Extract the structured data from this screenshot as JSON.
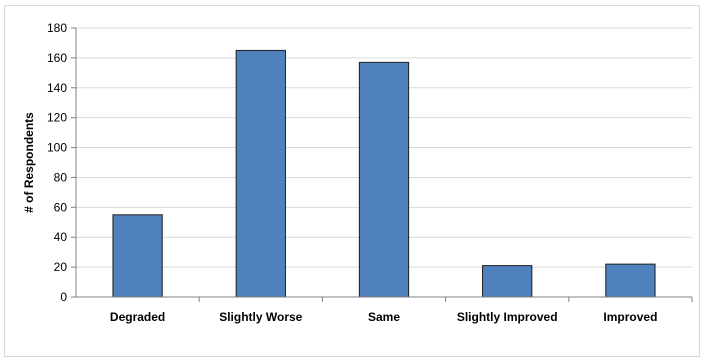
{
  "chart_data": {
    "type": "bar",
    "title": "",
    "xlabel": "",
    "ylabel": "# of Respondents",
    "categories": [
      "Degraded",
      "Slightly Worse",
      "Same",
      "Slightly Improved",
      "Improved"
    ],
    "values": [
      55,
      165,
      157,
      21,
      22
    ],
    "ylim": [
      0,
      180
    ],
    "yticks": [
      0,
      20,
      40,
      60,
      80,
      100,
      120,
      140,
      160,
      180
    ],
    "grid": true,
    "legend": "none",
    "bar_color": "#4f81bd",
    "bar_edge_color": "#1f1f1f",
    "grid_color": "#d9d9d9"
  }
}
